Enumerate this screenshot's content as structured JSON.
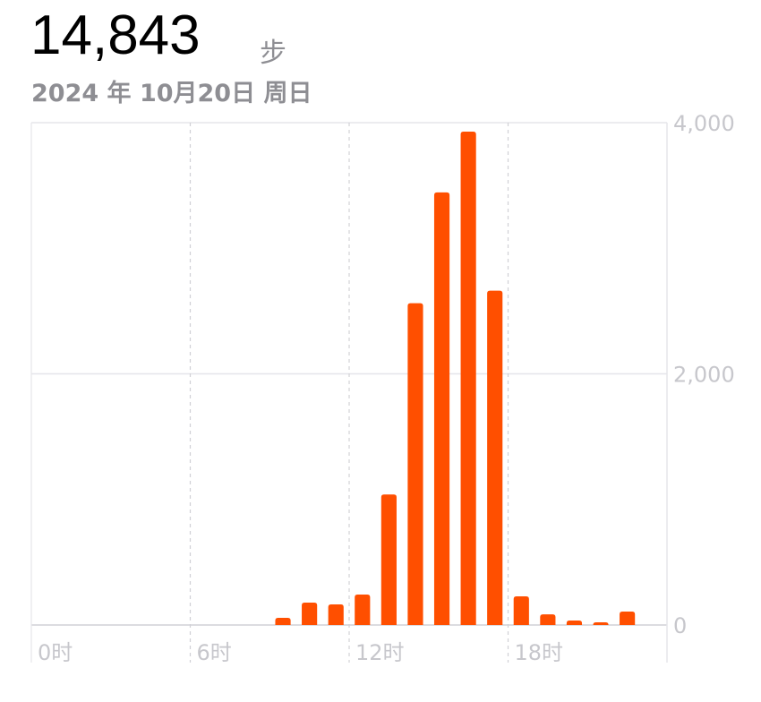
{
  "header": {
    "total": "14,843",
    "unit": "步",
    "date": "2024 年 10月20日 周日"
  },
  "chart_data": {
    "type": "bar",
    "x": [
      9,
      10,
      11,
      12,
      13,
      14,
      15,
      16,
      17,
      18,
      19,
      20,
      21,
      22
    ],
    "values": [
      57,
      178,
      164,
      242,
      1039,
      2562,
      3445,
      3929,
      2662,
      228,
      85,
      36,
      14,
      107
    ],
    "xlim": [
      0,
      24
    ],
    "ylim": [
      0,
      4000
    ],
    "x_ticks": [
      {
        "value": 0,
        "label": "0时"
      },
      {
        "value": 6,
        "label": "6时"
      },
      {
        "value": 12,
        "label": "12时"
      },
      {
        "value": 18,
        "label": "18时"
      }
    ],
    "y_ticks": [
      {
        "value": 0,
        "label": "0"
      },
      {
        "value": 2000,
        "label": "2,000"
      },
      {
        "value": 4000,
        "label": "4,000"
      }
    ],
    "bar_color": "#ff4f00",
    "grid": true
  }
}
